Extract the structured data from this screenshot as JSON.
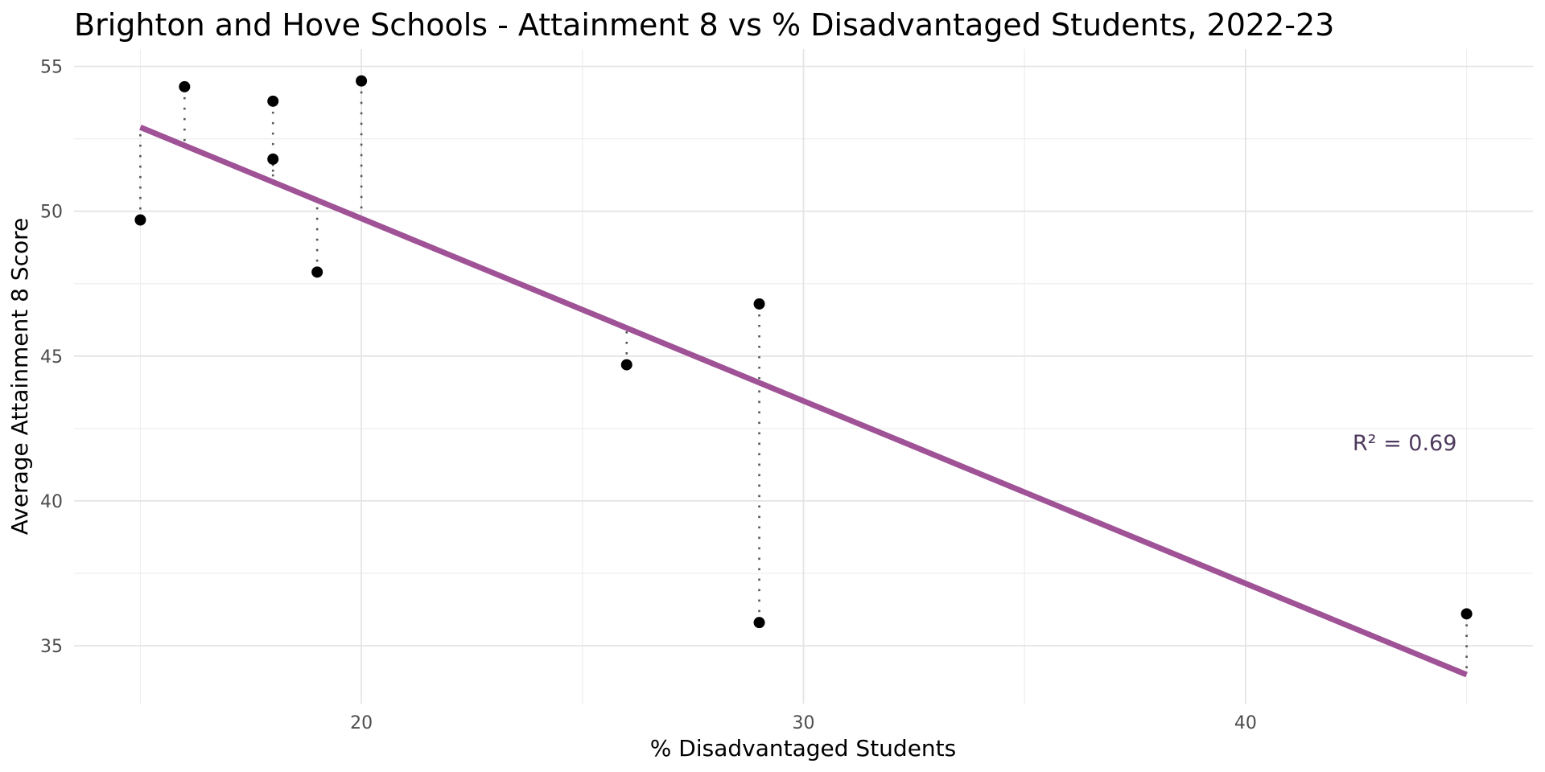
{
  "chart_data": {
    "type": "scatter",
    "title": "Brighton and Hove Schools - Attainment 8 vs % Disadvantaged Students, 2022-23",
    "xlabel": "% Disadvantaged Students",
    "ylabel": "Average Attainment 8 Score",
    "xlim": [
      13.5,
      46.5
    ],
    "ylim": [
      33.0,
      55.6
    ],
    "x_major_ticks": [
      20,
      30,
      40
    ],
    "x_minor_gridlines": [
      15,
      25,
      35,
      45
    ],
    "y_major_ticks": [
      35,
      40,
      45,
      50,
      55
    ],
    "y_minor_gridlines": [
      37.5,
      42.5,
      47.5,
      52.5
    ],
    "grid": true,
    "legend_position": "none",
    "points": [
      {
        "x": 15,
        "y": 49.7
      },
      {
        "x": 16,
        "y": 54.3
      },
      {
        "x": 18,
        "y": 53.8
      },
      {
        "x": 18,
        "y": 51.8
      },
      {
        "x": 19,
        "y": 47.9
      },
      {
        "x": 20,
        "y": 54.5
      },
      {
        "x": 26,
        "y": 44.7
      },
      {
        "x": 29,
        "y": 46.8
      },
      {
        "x": 29,
        "y": 35.8
      },
      {
        "x": 45,
        "y": 36.1
      }
    ],
    "trend_line": {
      "x_start": 15,
      "y_start": 52.9,
      "x_end": 45,
      "y_end": 34.0
    },
    "show_residual_lines": true,
    "annotation": {
      "text": "R² = 0.69",
      "x": 43.6,
      "y": 42.0
    },
    "colors": {
      "point": "#000000",
      "trend_line": "#9f5296",
      "residual_line": "#555555",
      "grid_major": "#e4e4e4",
      "grid_minor": "#eeeeee",
      "tick_label": "#4d4d4d",
      "axis_title": "#000000",
      "title": "#000000",
      "annotation": "#4e3a5e",
      "background": "#ffffff"
    }
  }
}
